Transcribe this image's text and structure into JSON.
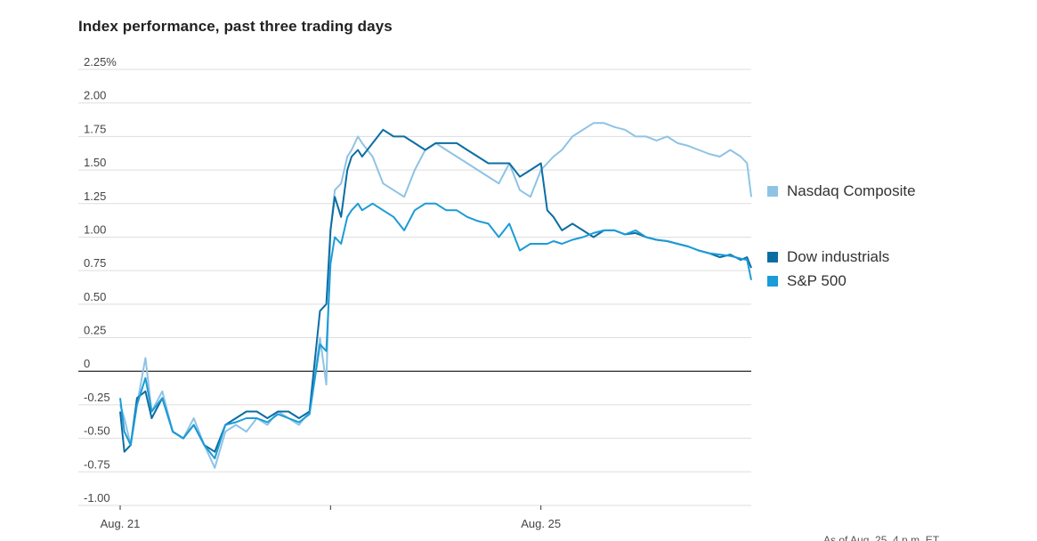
{
  "title": "Index performance, past three trading days",
  "footnote": "As of Aug. 25, 4 p.m. ET",
  "colors": {
    "nasdaq": "#8ec3e6",
    "dow": "#0c6da3",
    "sp500": "#1b9bd7",
    "grid": "#dddddd",
    "zero": "#222222"
  },
  "chart_data": {
    "type": "line",
    "title": "Index performance, past three trading days",
    "xlabel": "",
    "ylabel": "",
    "x_tick_labels": [
      "Aug. 21",
      "",
      "Aug. 25"
    ],
    "y_tick_labels": [
      "2.25%",
      "2.00",
      "1.75",
      "1.50",
      "1.25",
      "1.00",
      "0.75",
      "0.50",
      "0.25",
      "0",
      "-0.25",
      "-0.50",
      "-0.75",
      "-1.00"
    ],
    "ylim": [
      -1.0,
      2.25
    ],
    "grid": true,
    "legend_position": "right",
    "x_range": [
      0,
      3
    ],
    "series": [
      {
        "name": "Nasdaq Composite",
        "color": "#8ec3e6",
        "x": [
          0,
          0.02,
          0.05,
          0.08,
          0.12,
          0.15,
          0.2,
          0.25,
          0.3,
          0.35,
          0.4,
          0.45,
          0.5,
          0.55,
          0.6,
          0.65,
          0.7,
          0.75,
          0.8,
          0.85,
          0.9,
          0.95,
          0.98,
          1.0,
          1.02,
          1.05,
          1.08,
          1.1,
          1.13,
          1.15,
          1.2,
          1.25,
          1.3,
          1.35,
          1.4,
          1.45,
          1.5,
          1.55,
          1.6,
          1.65,
          1.7,
          1.75,
          1.8,
          1.85,
          1.9,
          1.95,
          2.0,
          2.03,
          2.06,
          2.1,
          2.15,
          2.2,
          2.25,
          2.3,
          2.35,
          2.4,
          2.45,
          2.5,
          2.55,
          2.6,
          2.65,
          2.7,
          2.75,
          2.8,
          2.85,
          2.9,
          2.95,
          2.98,
          3.0
        ],
        "values": [
          -0.25,
          -0.35,
          -0.55,
          -0.25,
          0.1,
          -0.3,
          -0.15,
          -0.45,
          -0.5,
          -0.35,
          -0.55,
          -0.72,
          -0.45,
          -0.4,
          -0.45,
          -0.35,
          -0.4,
          -0.3,
          -0.35,
          -0.4,
          -0.3,
          0.25,
          -0.1,
          1.05,
          1.35,
          1.4,
          1.6,
          1.65,
          1.75,
          1.7,
          1.6,
          1.4,
          1.35,
          1.3,
          1.5,
          1.65,
          1.7,
          1.65,
          1.6,
          1.55,
          1.5,
          1.45,
          1.4,
          1.55,
          1.35,
          1.3,
          1.5,
          1.55,
          1.6,
          1.65,
          1.75,
          1.8,
          1.85,
          1.85,
          1.82,
          1.8,
          1.75,
          1.75,
          1.72,
          1.75,
          1.7,
          1.68,
          1.65,
          1.62,
          1.6,
          1.65,
          1.6,
          1.55,
          1.3
        ]
      },
      {
        "name": "Dow industrials",
        "color": "#0c6da3",
        "x": [
          0,
          0.02,
          0.05,
          0.08,
          0.12,
          0.15,
          0.2,
          0.25,
          0.3,
          0.35,
          0.4,
          0.45,
          0.5,
          0.55,
          0.6,
          0.65,
          0.7,
          0.75,
          0.8,
          0.85,
          0.9,
          0.95,
          0.98,
          1.0,
          1.02,
          1.05,
          1.08,
          1.1,
          1.13,
          1.15,
          1.2,
          1.25,
          1.3,
          1.35,
          1.4,
          1.45,
          1.5,
          1.55,
          1.6,
          1.65,
          1.7,
          1.75,
          1.8,
          1.85,
          1.9,
          1.95,
          2.0,
          2.03,
          2.06,
          2.1,
          2.15,
          2.2,
          2.25,
          2.3,
          2.35,
          2.4,
          2.45,
          2.5,
          2.55,
          2.6,
          2.65,
          2.7,
          2.75,
          2.8,
          2.85,
          2.9,
          2.95,
          2.98,
          3.0
        ],
        "values": [
          -0.3,
          -0.6,
          -0.55,
          -0.2,
          -0.15,
          -0.35,
          -0.2,
          -0.45,
          -0.5,
          -0.4,
          -0.55,
          -0.6,
          -0.4,
          -0.35,
          -0.3,
          -0.3,
          -0.35,
          -0.3,
          -0.3,
          -0.35,
          -0.3,
          0.45,
          0.5,
          1.05,
          1.3,
          1.15,
          1.5,
          1.6,
          1.65,
          1.6,
          1.7,
          1.8,
          1.75,
          1.75,
          1.7,
          1.65,
          1.7,
          1.7,
          1.7,
          1.65,
          1.6,
          1.55,
          1.55,
          1.55,
          1.45,
          1.5,
          1.55,
          1.2,
          1.15,
          1.05,
          1.1,
          1.05,
          1.0,
          1.05,
          1.05,
          1.02,
          1.03,
          1.0,
          0.98,
          0.97,
          0.95,
          0.93,
          0.9,
          0.88,
          0.85,
          0.87,
          0.83,
          0.85,
          0.77
        ]
      },
      {
        "name": "S&P 500",
        "color": "#1b9bd7",
        "x": [
          0,
          0.02,
          0.05,
          0.08,
          0.12,
          0.15,
          0.2,
          0.25,
          0.3,
          0.35,
          0.4,
          0.45,
          0.5,
          0.55,
          0.6,
          0.65,
          0.7,
          0.75,
          0.8,
          0.85,
          0.9,
          0.95,
          0.98,
          1.0,
          1.02,
          1.05,
          1.08,
          1.1,
          1.13,
          1.15,
          1.2,
          1.25,
          1.3,
          1.35,
          1.4,
          1.45,
          1.5,
          1.55,
          1.6,
          1.65,
          1.7,
          1.75,
          1.8,
          1.85,
          1.9,
          1.95,
          2.0,
          2.03,
          2.06,
          2.1,
          2.15,
          2.2,
          2.25,
          2.3,
          2.35,
          2.4,
          2.45,
          2.5,
          2.55,
          2.6,
          2.65,
          2.7,
          2.75,
          2.8,
          2.85,
          2.9,
          2.95,
          2.98,
          3.0
        ],
        "values": [
          -0.2,
          -0.45,
          -0.55,
          -0.25,
          -0.05,
          -0.3,
          -0.2,
          -0.45,
          -0.5,
          -0.4,
          -0.55,
          -0.65,
          -0.4,
          -0.38,
          -0.35,
          -0.35,
          -0.38,
          -0.32,
          -0.35,
          -0.38,
          -0.32,
          0.2,
          0.15,
          0.8,
          1.0,
          0.95,
          1.15,
          1.2,
          1.25,
          1.2,
          1.25,
          1.2,
          1.15,
          1.05,
          1.2,
          1.25,
          1.25,
          1.2,
          1.2,
          1.15,
          1.12,
          1.1,
          1.0,
          1.1,
          0.9,
          0.95,
          0.95,
          0.95,
          0.97,
          0.95,
          0.98,
          1.0,
          1.03,
          1.05,
          1.05,
          1.02,
          1.05,
          1.0,
          0.98,
          0.97,
          0.95,
          0.93,
          0.9,
          0.88,
          0.87,
          0.86,
          0.84,
          0.83,
          0.68
        ]
      }
    ]
  }
}
